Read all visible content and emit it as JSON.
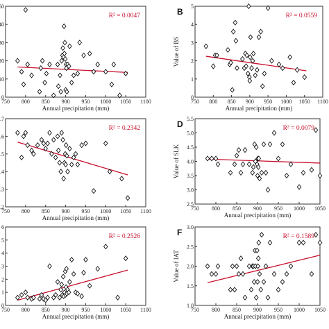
{
  "style": {
    "trend_color": "#c8102e",
    "marker": "diamond-open",
    "axis_color": "#333333"
  },
  "chart_data": [
    {
      "type": "scatter",
      "id": "A",
      "panel_label": "",
      "ylabel": "",
      "xlabel": "Annual precipitation (mm)",
      "xlim": [
        750,
        1100
      ],
      "xticks": [
        750,
        800,
        850,
        900,
        950,
        1000,
        1050,
        1100
      ],
      "ylim": [
        0,
        50
      ],
      "yticks": [
        0,
        10,
        20,
        30,
        40,
        50
      ],
      "r2_text": "R² = 0.0047",
      "trendline": {
        "x": [
          780,
          1055
        ],
        "y": [
          16.6,
          13.6
        ]
      },
      "x": [
        780,
        790,
        795,
        800,
        805,
        815,
        835,
        838,
        842,
        848,
        852,
        860,
        870,
        880,
        882,
        886,
        888,
        890,
        892,
        893,
        895,
        896,
        897,
        898,
        899,
        900,
        901,
        902,
        903,
        905,
        908,
        910,
        915,
        920,
        930,
        935,
        945,
        960,
        970,
        980,
        1000,
        1015,
        1020,
        1035,
        1050
      ],
      "y": [
        20,
        14,
        7,
        48,
        18,
        12,
        3,
        16,
        20,
        8,
        13,
        18,
        1,
        18,
        6,
        12,
        3,
        20,
        23,
        27,
        22,
        39,
        24,
        30,
        21,
        4,
        18,
        16,
        3,
        18,
        17,
        28,
        8,
        12,
        13,
        30,
        23,
        24,
        14,
        18,
        14,
        7,
        18,
        1,
        13
      ]
    },
    {
      "type": "scatter",
      "id": "B",
      "panel_label": "B",
      "ylabel": "Value of BS",
      "xlabel": "Annual precipitation (mm)",
      "xlim": [
        750,
        1100
      ],
      "xticks": [
        750,
        800,
        850,
        900,
        950,
        1000,
        1050,
        1100
      ],
      "ylim": [
        0,
        5
      ],
      "yticks": [
        0,
        1,
        2,
        3,
        4,
        5
      ],
      "r2_text": "R² = 0.0559",
      "trendline": {
        "x": [
          780,
          1055
        ],
        "y": [
          2.25,
          1.45
        ]
      },
      "x": [
        780,
        800,
        805,
        810,
        840,
        845,
        848,
        852,
        855,
        860,
        862,
        865,
        880,
        885,
        888,
        890,
        892,
        895,
        897,
        899,
        900,
        901,
        902,
        905,
        908,
        910,
        915,
        920,
        925,
        930,
        935,
        940,
        950,
        960,
        980,
        990,
        1010,
        1020,
        1030,
        1050
      ],
      "y": [
        2.8,
        1.7,
        2.3,
        2.3,
        2.6,
        1.8,
        1.9,
        0.4,
        3.6,
        4.1,
        3.1,
        1.6,
        2.1,
        1.6,
        2.4,
        1.7,
        2.3,
        1.3,
        5.0,
        1.1,
        0.9,
        2.2,
        3.3,
        1.6,
        2.0,
        2.4,
        1.2,
        1.5,
        3.3,
        3.6,
        0.6,
        1.3,
        4.9,
        2.0,
        1.8,
        1.6,
        2.2,
        0.8,
        1.5,
        1.1
      ]
    },
    {
      "type": "scatter",
      "id": "C",
      "panel_label": "",
      "ylabel": "",
      "xlabel": "Annual precipitation (mm)",
      "xlim": [
        750,
        1100
      ],
      "xticks": [
        750,
        800,
        850,
        900,
        950,
        1000,
        1050,
        1100
      ],
      "ylim": [
        0.2,
        0.7
      ],
      "ytick_labels": [
        ".2",
        ".3",
        ".4",
        ".5",
        ".6",
        ".7"
      ],
      "yticks": [
        0.2,
        0.3,
        0.4,
        0.5,
        0.6,
        0.7
      ],
      "r2_text": "R² = 0.2342",
      "trendline": {
        "x": [
          780,
          1055
        ],
        "y": [
          0.567,
          0.381
        ]
      },
      "x": [
        780,
        790,
        795,
        800,
        805,
        815,
        820,
        830,
        840,
        845,
        850,
        855,
        860,
        865,
        870,
        875,
        880,
        882,
        885,
        888,
        890,
        893,
        895,
        897,
        899,
        900,
        901,
        903,
        905,
        910,
        915,
        920,
        925,
        930,
        940,
        950,
        970,
        1000,
        1010,
        1040,
        1055
      ],
      "y": [
        0.62,
        0.48,
        0.6,
        0.62,
        0.55,
        0.52,
        0.5,
        0.55,
        0.58,
        0.56,
        0.53,
        0.56,
        0.62,
        0.5,
        0.58,
        0.48,
        0.6,
        0.52,
        0.45,
        0.4,
        0.62,
        0.58,
        0.36,
        0.45,
        0.5,
        0.44,
        0.55,
        0.49,
        0.4,
        0.53,
        0.44,
        0.48,
        0.5,
        0.44,
        0.55,
        0.56,
        0.29,
        0.56,
        0.4,
        0.36,
        0.25
      ]
    },
    {
      "type": "scatter",
      "id": "D",
      "panel_label": "D",
      "ylabel": "Value of SLK",
      "xlabel": "Annual precipitation (mm)",
      "xlim": [
        750,
        1050
      ],
      "xticks": [
        750,
        800,
        850,
        900,
        950,
        1000,
        1050
      ],
      "ylim": [
        2.5,
        5.5
      ],
      "yticks": [
        2.5,
        3.0,
        3.5,
        4.0,
        4.5,
        5.0,
        5.5
      ],
      "r2_text": "R² = 0.0079",
      "trendline": {
        "x": [
          780,
          1050
        ],
        "y": [
          4.08,
          3.94
        ]
      },
      "x": [
        780,
        790,
        800,
        805,
        835,
        845,
        850,
        855,
        860,
        865,
        870,
        880,
        888,
        890,
        893,
        895,
        897,
        899,
        900,
        901,
        902,
        903,
        905,
        910,
        915,
        920,
        925,
        930,
        940,
        950,
        960,
        970,
        980,
        1000,
        1010,
        1030,
        1040,
        1050
      ],
      "y": [
        4.1,
        4.1,
        4.1,
        3.9,
        3.6,
        3.9,
        4.2,
        4.4,
        3.6,
        3.9,
        4.4,
        3.9,
        3.6,
        3.8,
        4.6,
        4.0,
        4.5,
        3.9,
        3.5,
        4.1,
        3.8,
        4.1,
        3.4,
        3.6,
        4.6,
        3.6,
        3.0,
        4.6,
        5.0,
        4.1,
        4.6,
        3.5,
        3.9,
        3.1,
        3.6,
        3.7,
        5.1,
        3.5
      ]
    },
    {
      "type": "scatter",
      "id": "E",
      "panel_label": "",
      "ylabel": "",
      "xlabel": "Annual precipitation (mm)",
      "xlim": [
        750,
        1100
      ],
      "xticks": [
        750,
        800,
        850,
        900,
        950,
        1000,
        1050,
        1100
      ],
      "ylim": [
        0,
        6
      ],
      "yticks": [
        0,
        1,
        2,
        3,
        4,
        5,
        6
      ],
      "r2_text": "R² = 0.2526",
      "trendline": {
        "x": [
          780,
          1055
        ],
        "y": [
          0.4,
          2.7
        ]
      },
      "x": [
        780,
        790,
        800,
        805,
        815,
        820,
        835,
        840,
        845,
        850,
        855,
        860,
        870,
        875,
        880,
        885,
        888,
        890,
        892,
        894,
        895,
        897,
        899,
        900,
        901,
        902,
        903,
        905,
        908,
        910,
        915,
        920,
        925,
        930,
        940,
        945,
        950,
        960,
        980,
        1000,
        1030,
        1050
      ],
      "y": [
        0.6,
        0.8,
        1.0,
        0.6,
        0.5,
        0.6,
        0.5,
        0.8,
        0.5,
        0.4,
        0.6,
        3.0,
        0.6,
        0.8,
        1.8,
        0.6,
        1.2,
        1.6,
        0.8,
        2.2,
        0.7,
        1.0,
        2.6,
        0.8,
        1.4,
        2.8,
        0.9,
        1.2,
        1.0,
        1.8,
        3.5,
        2.4,
        1.0,
        0.9,
        0.7,
        2.5,
        3.5,
        1.5,
        2.8,
        4.5,
        0.6,
        3.6
      ]
    },
    {
      "type": "scatter",
      "id": "F",
      "panel_label": "F",
      "ylabel": "Value of IAT",
      "xlabel": "Annual precipitation (mm)",
      "xlim": [
        750,
        1050
      ],
      "xticks": [
        750,
        800,
        850,
        900,
        950,
        1000,
        1050
      ],
      "ylim": [
        1.0,
        3.0
      ],
      "yticks": [
        1.0,
        1.5,
        2.0,
        2.5,
        3.0
      ],
      "r2_text": "R² = 0.1589",
      "trendline": {
        "x": [
          780,
          1050
        ],
        "y": [
          1.58,
          2.28
        ]
      },
      "x": [
        780,
        790,
        800,
        805,
        835,
        840,
        845,
        850,
        855,
        860,
        865,
        870,
        880,
        885,
        888,
        890,
        892,
        894,
        895,
        897,
        899,
        900,
        901,
        902,
        903,
        905,
        908,
        910,
        915,
        920,
        925,
        930,
        940,
        950,
        960,
        970,
        980,
        1000,
        1010,
        1030,
        1040,
        1050
      ],
      "y": [
        2.0,
        1.8,
        1.8,
        2.0,
        1.4,
        2.0,
        1.4,
        2.0,
        1.8,
        2.2,
        1.8,
        1.2,
        2.0,
        1.4,
        2.0,
        2.0,
        1.6,
        2.4,
        2.0,
        1.2,
        2.4,
        1.6,
        2.0,
        2.2,
        2.6,
        1.8,
        1.4,
        2.8,
        1.6,
        2.0,
        1.2,
        2.6,
        1.8,
        1.4,
        1.6,
        1.8,
        2.0,
        2.6,
        2.6,
        1.8,
        2.8,
        2.6
      ]
    }
  ]
}
